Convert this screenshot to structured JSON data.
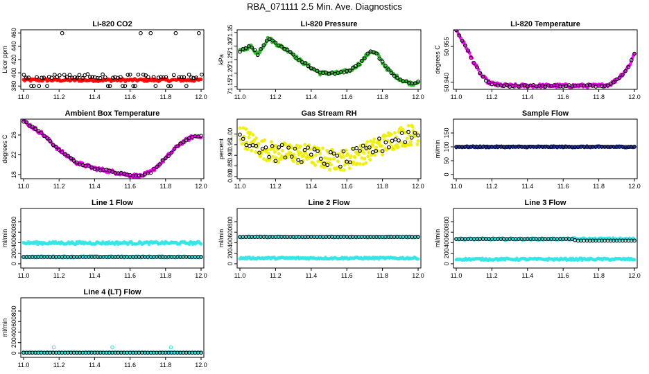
{
  "title": "RBA_071111  2.5 Min. Ave. Diagnostics",
  "chart_data": [
    {
      "type": "scatter",
      "title": "Li-820 CO2",
      "ylabel": "Licor ppm",
      "xlim": [
        11.0,
        12.0
      ],
      "ylim": [
        375,
        465
      ],
      "xticks": [
        11.0,
        11.2,
        11.4,
        11.6,
        11.8,
        12.0
      ],
      "xtick_labels": [
        "11.0",
        "11.2",
        "11.4",
        "11.6",
        "11.8",
        "12.0"
      ],
      "yticks": [
        380,
        400,
        420,
        440,
        460
      ],
      "ytick_labels": [
        "380",
        "400",
        "420",
        "440",
        "460"
      ],
      "series": [
        {
          "name": "raw",
          "color": "#ff0000",
          "kind": "band",
          "x_range": [
            11.0,
            12.0
          ],
          "y_low": 387,
          "y_high": 391
        },
        {
          "name": "2.5 min avg",
          "color": "#000000",
          "kind": "sparse_levels",
          "x_range": [
            11.0,
            12.0
          ],
          "levels": [
            380,
            392,
            396,
            460
          ]
        }
      ]
    },
    {
      "type": "scatter",
      "title": "Li-820 Pressure",
      "ylabel": "kPa",
      "xlim": [
        11.0,
        12.0
      ],
      "ylim": [
        71.14,
        71.36
      ],
      "xticks": [
        11.0,
        11.2,
        11.4,
        11.6,
        11.8,
        12.0
      ],
      "xtick_labels": [
        "11.0",
        "11.2",
        "11.4",
        "11.6",
        "11.8",
        "12.0"
      ],
      "yticks": [
        71.15,
        71.2,
        71.25,
        71.3,
        71.35
      ],
      "ytick_labels": [
        "71.15",
        "71.20",
        "71.25",
        "71.30",
        "71.35"
      ],
      "series": [
        {
          "name": "raw",
          "color": "#22bb22",
          "kind": "curve",
          "x": [
            11.0,
            11.06,
            11.1,
            11.16,
            11.2,
            11.28,
            11.33,
            11.4,
            11.45,
            11.55,
            11.62,
            11.68,
            11.73,
            11.77,
            11.82,
            11.87,
            11.92,
            11.97,
            12.0
          ],
          "y": [
            71.28,
            71.3,
            71.27,
            71.33,
            71.31,
            71.28,
            71.25,
            71.22,
            71.2,
            71.2,
            71.21,
            71.24,
            71.28,
            71.27,
            71.22,
            71.19,
            71.17,
            71.16,
            71.17
          ]
        },
        {
          "name": "2.5 min avg",
          "color": "#000000",
          "kind": "curve_open",
          "x": [
            11.0,
            11.06,
            11.1,
            11.16,
            11.2,
            11.28,
            11.33,
            11.4,
            11.45,
            11.55,
            11.62,
            11.68,
            11.73,
            11.77,
            11.82,
            11.87,
            11.92,
            11.97,
            12.0
          ],
          "y": [
            71.28,
            71.3,
            71.27,
            71.33,
            71.31,
            71.28,
            71.25,
            71.22,
            71.2,
            71.2,
            71.21,
            71.24,
            71.28,
            71.27,
            71.22,
            71.19,
            71.17,
            71.16,
            71.17
          ]
        }
      ]
    },
    {
      "type": "scatter",
      "title": "Li-820 Temperature",
      "ylabel": "degrees C",
      "xlim": [
        11.0,
        12.0
      ],
      "ylim": [
        50.937,
        50.962
      ],
      "xticks": [
        11.0,
        11.2,
        11.4,
        11.6,
        11.8,
        12.0
      ],
      "xtick_labels": [
        "11.0",
        "11.2",
        "11.4",
        "11.6",
        "11.8",
        "12.0"
      ],
      "yticks": [
        50.94,
        50.955
      ],
      "ytick_labels": [
        "50.940",
        "50.955"
      ],
      "series": [
        {
          "name": "raw",
          "color": "#ee00ee",
          "kind": "curve",
          "x": [
            11.0,
            11.03,
            11.06,
            11.1,
            11.14,
            11.18,
            11.22,
            11.3,
            11.4,
            11.6,
            11.8,
            11.86,
            11.9,
            11.94,
            11.97,
            12.0
          ],
          "y": [
            50.962,
            50.958,
            50.954,
            50.948,
            50.943,
            50.94,
            50.939,
            50.9385,
            50.9385,
            50.9385,
            50.9385,
            50.939,
            50.941,
            50.944,
            50.947,
            50.952
          ]
        },
        {
          "name": "2.5 min avg",
          "color": "#000000",
          "kind": "curve_open",
          "x": [
            11.0,
            11.03,
            11.06,
            11.1,
            11.14,
            11.18,
            11.22,
            11.3,
            11.4,
            11.6,
            11.8,
            11.86,
            11.9,
            11.94,
            11.97,
            12.0
          ],
          "y": [
            50.962,
            50.958,
            50.954,
            50.948,
            50.943,
            50.94,
            50.939,
            50.9385,
            50.9385,
            50.9385,
            50.9385,
            50.939,
            50.941,
            50.944,
            50.947,
            50.952
          ]
        }
      ]
    },
    {
      "type": "scatter",
      "title": "Ambient Box Temperature",
      "ylabel": "degrees C",
      "xlim": [
        11.0,
        12.0
      ],
      "ylim": [
        17.2,
        29.2
      ],
      "xticks": [
        11.0,
        11.2,
        11.4,
        11.6,
        11.8,
        12.0
      ],
      "xtick_labels": [
        "11.0",
        "11.2",
        "11.4",
        "11.6",
        "11.8",
        "12.0"
      ],
      "yticks": [
        18,
        22,
        26
      ],
      "ytick_labels": [
        "18",
        "22",
        "26"
      ],
      "series": [
        {
          "name": "raw",
          "color": "#ee00ee",
          "kind": "curve",
          "x": [
            11.0,
            11.1,
            11.2,
            11.3,
            11.4,
            11.5,
            11.6,
            11.66,
            11.72,
            11.8,
            11.88,
            11.95,
            12.0
          ],
          "y": [
            28.8,
            26.4,
            23.0,
            20.4,
            19.3,
            18.6,
            17.9,
            17.7,
            18.6,
            21.3,
            24.2,
            25.6,
            25.8
          ]
        },
        {
          "name": "2.5 min avg",
          "color": "#000000",
          "kind": "curve_open",
          "x": [
            11.0,
            11.1,
            11.2,
            11.3,
            11.4,
            11.5,
            11.6,
            11.66,
            11.72,
            11.8,
            11.88,
            11.95,
            12.0
          ],
          "y": [
            28.8,
            26.4,
            23.0,
            20.4,
            19.3,
            18.6,
            17.9,
            17.7,
            18.6,
            21.3,
            24.2,
            25.6,
            25.8
          ]
        }
      ]
    },
    {
      "type": "scatter",
      "title": "Gas Stream RH",
      "ylabel": "percent",
      "xlim": [
        11.0,
        12.0
      ],
      "ylim": [
        0.79,
        1.07
      ],
      "xticks": [
        11.0,
        11.2,
        11.4,
        11.6,
        11.8,
        12.0
      ],
      "xtick_labels": [
        "11.0",
        "11.2",
        "11.4",
        "11.6",
        "11.8",
        "12.0"
      ],
      "yticks": [
        0.8,
        0.85,
        0.9,
        0.95,
        1.0
      ],
      "ytick_labels": [
        "0.80",
        "0.85",
        "0.90",
        "0.95",
        "1.00"
      ],
      "series": [
        {
          "name": "raw",
          "color": "#eeee00",
          "kind": "noisy",
          "x": [
            11.0,
            11.05,
            11.1,
            11.2,
            11.3,
            11.4,
            11.5,
            11.6,
            11.7,
            11.8,
            11.9,
            12.0
          ],
          "y": [
            1.0,
            0.97,
            0.94,
            0.91,
            0.91,
            0.9,
            0.88,
            0.88,
            0.91,
            0.95,
            0.99,
            1.0
          ],
          "spread": 0.05
        },
        {
          "name": "2.5 min avg",
          "color": "#000000",
          "kind": "noisy_open",
          "x": [
            11.0,
            11.05,
            11.1,
            11.2,
            11.3,
            11.4,
            11.5,
            11.6,
            11.7,
            11.8,
            11.9,
            12.0
          ],
          "y": [
            1.0,
            0.97,
            0.94,
            0.91,
            0.91,
            0.9,
            0.88,
            0.88,
            0.91,
            0.95,
            0.99,
            1.0
          ],
          "spread": 0.04
        }
      ]
    },
    {
      "type": "scatter",
      "title": "Sample Flow",
      "ylabel": "ml/min",
      "xlim": [
        11.0,
        12.0
      ],
      "ylim": [
        -15,
        200
      ],
      "xticks": [
        11.0,
        11.2,
        11.4,
        11.6,
        11.8,
        12.0
      ],
      "xtick_labels": [
        "11.0",
        "11.2",
        "11.4",
        "11.6",
        "11.8",
        "12.0"
      ],
      "yticks": [
        0,
        50,
        100,
        150
      ],
      "ytick_labels": [
        "0",
        "50",
        "100",
        "150"
      ],
      "series": [
        {
          "name": "raw",
          "color": "#1a2eb0",
          "kind": "band",
          "x_range": [
            11.0,
            12.0
          ],
          "y_low": 97,
          "y_high": 103
        },
        {
          "name": "2.5 min avg",
          "color": "#000000",
          "kind": "flat_open",
          "x_range": [
            11.0,
            12.0
          ],
          "y": 100
        }
      ]
    },
    {
      "type": "scatter",
      "title": "Line 1 Flow",
      "ylabel": "ml/min",
      "xlim": [
        11.0,
        12.0
      ],
      "ylim": [
        -80,
        1050
      ],
      "xticks": [
        11.0,
        11.2,
        11.4,
        11.6,
        11.8,
        12.0
      ],
      "xtick_labels": [
        "11.0",
        "11.2",
        "11.4",
        "11.6",
        "11.8",
        "12.0"
      ],
      "yticks": [
        0,
        200,
        400,
        600,
        800
      ],
      "ytick_labels": [
        "0",
        "200",
        "400",
        "600",
        "800"
      ],
      "series": [
        {
          "name": "raw high",
          "color": "#33e6e6",
          "kind": "band",
          "x_range": [
            11.0,
            12.0
          ],
          "y_low": 370,
          "y_high": 420
        },
        {
          "name": "raw low",
          "color": "#33e6e6",
          "kind": "band",
          "x_range": [
            11.0,
            12.0
          ],
          "y_low": 115,
          "y_high": 150
        },
        {
          "name": "2.5 min avg",
          "color": "#000000",
          "kind": "flat_open",
          "x_range": [
            11.0,
            12.0
          ],
          "y": 130
        }
      ]
    },
    {
      "type": "scatter",
      "title": "Line 2 Flow",
      "ylabel": "ml/min",
      "xlim": [
        11.0,
        12.0
      ],
      "ylim": [
        -80,
        1050
      ],
      "xticks": [
        11.0,
        11.2,
        11.4,
        11.6,
        11.8,
        12.0
      ],
      "xtick_labels": [
        "11.0",
        "11.2",
        "11.4",
        "11.6",
        "11.8",
        "12.0"
      ],
      "yticks": [
        0,
        200,
        400,
        600,
        800
      ],
      "ytick_labels": [
        "0",
        "200",
        "400",
        "600",
        "800"
      ],
      "series": [
        {
          "name": "raw high",
          "color": "#33e6e6",
          "kind": "band",
          "x_range": [
            11.0,
            12.0
          ],
          "y_low": 495,
          "y_high": 525
        },
        {
          "name": "raw low",
          "color": "#33e6e6",
          "kind": "band",
          "x_range": [
            11.0,
            12.0
          ],
          "y_low": 90,
          "y_high": 125
        },
        {
          "name": "2.5 min avg",
          "color": "#000000",
          "kind": "flat_open",
          "x_range": [
            11.0,
            12.0
          ],
          "y": 510
        }
      ]
    },
    {
      "type": "scatter",
      "title": "Line 3 Flow",
      "ylabel": "ml/min",
      "xlim": [
        11.0,
        12.0
      ],
      "ylim": [
        -80,
        1050
      ],
      "xticks": [
        11.0,
        11.2,
        11.4,
        11.6,
        11.8,
        12.0
      ],
      "xtick_labels": [
        "11.0",
        "11.2",
        "11.4",
        "11.6",
        "11.8",
        "12.0"
      ],
      "yticks": [
        0,
        200,
        400,
        600,
        800
      ],
      "ytick_labels": [
        "0",
        "200",
        "400",
        "600",
        "800"
      ],
      "series": [
        {
          "name": "raw high",
          "color": "#33e6e6",
          "kind": "band",
          "x_range": [
            11.0,
            12.0
          ],
          "y_low": 450,
          "y_high": 490
        },
        {
          "name": "raw low",
          "color": "#33e6e6",
          "kind": "band",
          "x_range": [
            11.0,
            12.0
          ],
          "y_low": 70,
          "y_high": 105
        },
        {
          "name": "2.5 min avg",
          "color": "#000000",
          "kind": "step_open",
          "x": [
            11.0,
            11.66,
            11.67,
            12.0
          ],
          "y": [
            470,
            470,
            440,
            440
          ]
        }
      ]
    },
    {
      "type": "scatter",
      "title": "Line 4 (LT) Flow",
      "ylabel": "ml/min",
      "xlim": [
        11.0,
        12.0
      ],
      "ylim": [
        -80,
        1050
      ],
      "xticks": [
        11.0,
        11.2,
        11.4,
        11.6,
        11.8,
        12.0
      ],
      "xtick_labels": [
        "11.0",
        "11.2",
        "11.4",
        "11.6",
        "11.8",
        "12.0"
      ],
      "yticks": [
        0,
        200,
        400,
        600,
        800
      ],
      "ytick_labels": [
        "0",
        "200",
        "400",
        "600",
        "800"
      ],
      "series": [
        {
          "name": "raw",
          "color": "#33e6e6",
          "kind": "band",
          "x_range": [
            11.0,
            12.0
          ],
          "y_low": 5,
          "y_high": 20
        },
        {
          "name": "raw spikes",
          "color": "#33e6e6",
          "kind": "points_open",
          "x": [
            11.17,
            11.5,
            11.83
          ],
          "y": [
            110,
            110,
            110
          ]
        },
        {
          "name": "2.5 min avg",
          "color": "#000000",
          "kind": "flat_open",
          "x_range": [
            11.0,
            12.0
          ],
          "y": 10
        }
      ]
    }
  ]
}
